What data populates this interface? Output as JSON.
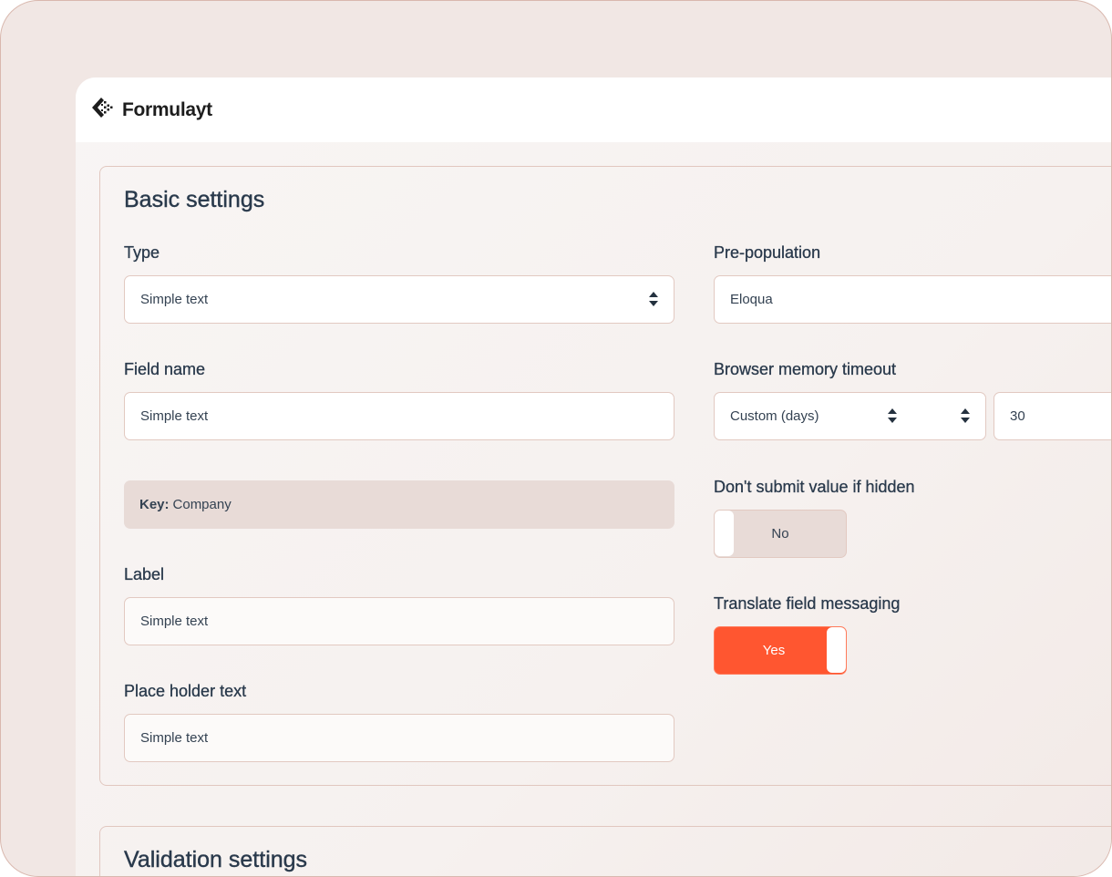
{
  "app": {
    "name": "Formulayt",
    "logo_icon": "formulayt-logo-icon"
  },
  "basic_settings": {
    "title": "Basic settings",
    "type": {
      "label": "Type",
      "value": "Simple text"
    },
    "field_name": {
      "label": "Field name",
      "value": "Simple text"
    },
    "key": {
      "label": "Key:",
      "value": "Company"
    },
    "label": {
      "label": "Label",
      "value": "Simple text"
    },
    "placeholder": {
      "label": "Place holder text",
      "value": "Simple text"
    },
    "pre_population": {
      "label": "Pre-population",
      "value": "Eloqua"
    },
    "browser_memory_timeout": {
      "label": "Browser memory timeout",
      "unit": "Custom (days)",
      "value": "30"
    },
    "dont_submit_hidden": {
      "label": "Don't submit value if hidden",
      "value": "No",
      "state": false
    },
    "translate_messaging": {
      "label": "Translate field messaging",
      "value": "Yes",
      "state": true
    }
  },
  "validation_settings": {
    "title": "Validation settings"
  },
  "colors": {
    "accent": "#ff5630",
    "border": "#e2c9c1",
    "text": "#2a3a4c"
  }
}
